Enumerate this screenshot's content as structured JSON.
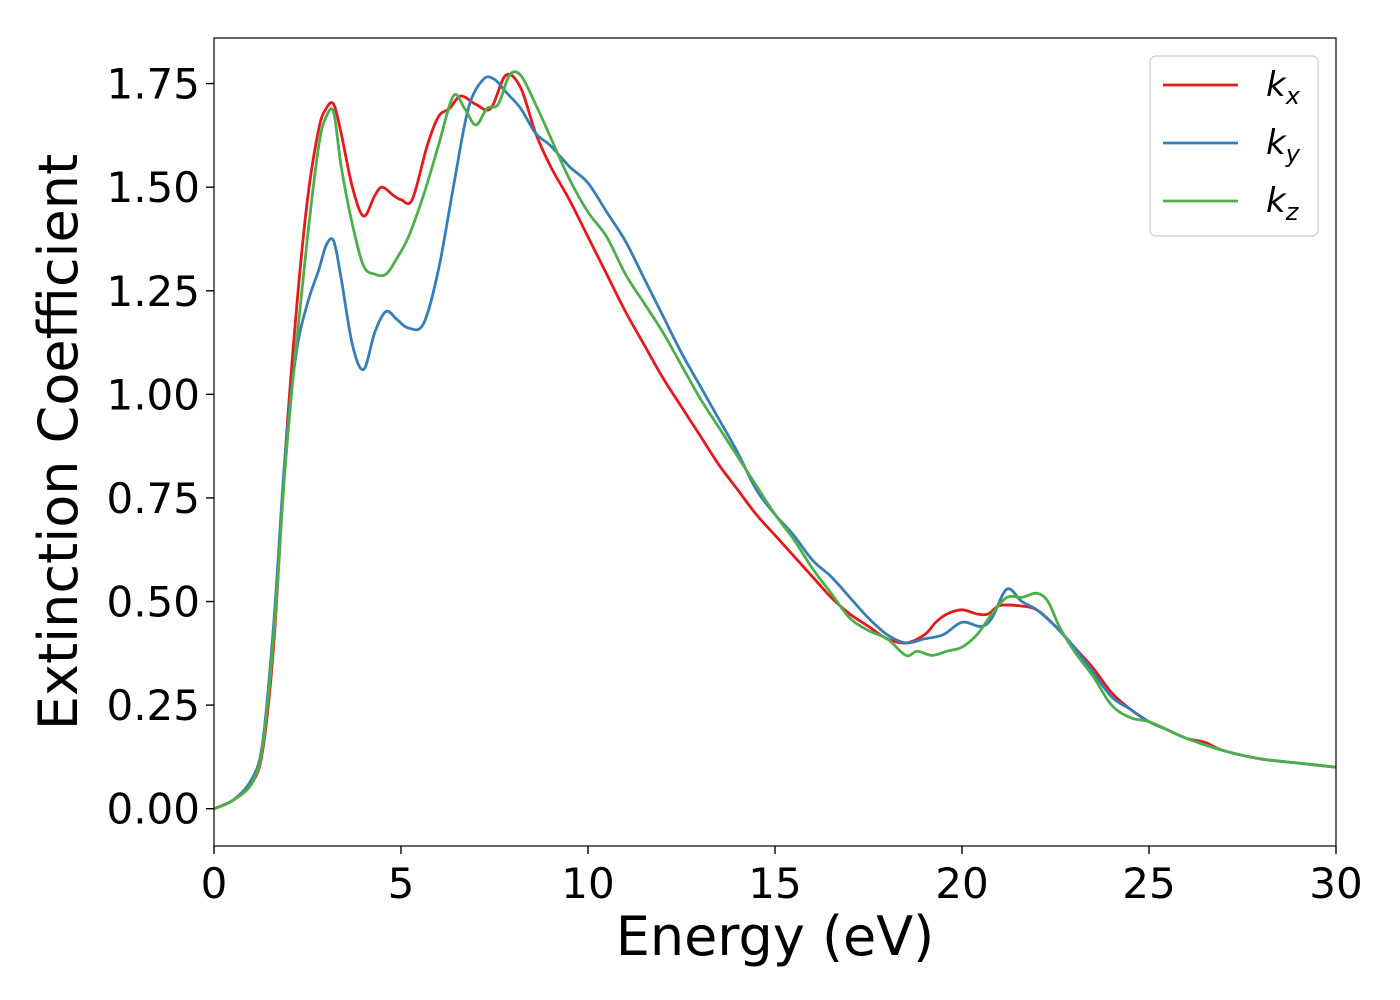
{
  "chart_data": {
    "type": "line",
    "xlabel": "Energy (eV)",
    "ylabel": "Extinction Coefficient",
    "xlim": [
      0,
      30
    ],
    "ylim": [
      -0.09,
      1.86
    ],
    "xticks": [
      "0",
      "5",
      "10",
      "15",
      "20",
      "25",
      "30"
    ],
    "yticks": [
      "0.00",
      "0.25",
      "0.50",
      "0.75",
      "1.00",
      "1.25",
      "1.50",
      "1.75"
    ],
    "grid": false,
    "legend_position": "top-right",
    "series": [
      {
        "name": "k",
        "subscript": "x",
        "color": "#e41a1c",
        "x": [
          0,
          0.5,
          1.0,
          1.3,
          1.6,
          1.9,
          2.2,
          2.5,
          2.8,
          3.0,
          3.2,
          3.4,
          3.7,
          4.0,
          4.3,
          4.5,
          4.8,
          5.0,
          5.3,
          5.7,
          6.0,
          6.3,
          6.6,
          7.0,
          7.4,
          7.8,
          8.2,
          8.6,
          9.0,
          9.5,
          10.0,
          10.5,
          11.0,
          11.5,
          12.0,
          12.5,
          13.0,
          13.5,
          14.0,
          14.5,
          15.0,
          15.5,
          16.0,
          16.5,
          17.0,
          17.5,
          18.0,
          18.5,
          19.0,
          19.3,
          19.6,
          20.0,
          20.4,
          20.7,
          21.0,
          21.5,
          22.0,
          22.5,
          23.0,
          23.5,
          24.0,
          24.5,
          25.0,
          25.5,
          26.0,
          26.5,
          27.0,
          28.0,
          29.0,
          30.0
        ],
        "y": [
          0.0,
          0.02,
          0.06,
          0.14,
          0.4,
          0.85,
          1.2,
          1.47,
          1.64,
          1.69,
          1.7,
          1.63,
          1.5,
          1.43,
          1.48,
          1.5,
          1.48,
          1.47,
          1.47,
          1.6,
          1.67,
          1.69,
          1.72,
          1.7,
          1.69,
          1.77,
          1.74,
          1.63,
          1.55,
          1.47,
          1.38,
          1.29,
          1.2,
          1.12,
          1.04,
          0.97,
          0.9,
          0.83,
          0.77,
          0.71,
          0.66,
          0.61,
          0.56,
          0.51,
          0.47,
          0.44,
          0.41,
          0.4,
          0.42,
          0.45,
          0.47,
          0.48,
          0.47,
          0.47,
          0.49,
          0.49,
          0.48,
          0.44,
          0.39,
          0.34,
          0.28,
          0.24,
          0.21,
          0.19,
          0.17,
          0.16,
          0.14,
          0.12,
          0.11,
          0.1
        ]
      },
      {
        "name": "k",
        "subscript": "y",
        "color": "#377eb8",
        "x": [
          0,
          0.5,
          1.0,
          1.3,
          1.6,
          1.9,
          2.2,
          2.5,
          2.8,
          3.0,
          3.2,
          3.4,
          3.7,
          4.0,
          4.3,
          4.6,
          4.9,
          5.2,
          5.6,
          6.0,
          6.4,
          6.8,
          7.2,
          7.5,
          7.8,
          8.2,
          8.6,
          9.0,
          9.5,
          10.0,
          10.5,
          11.0,
          11.5,
          12.0,
          12.5,
          13.0,
          13.5,
          14.0,
          14.5,
          15.0,
          15.5,
          16.0,
          16.5,
          17.0,
          17.5,
          18.0,
          18.5,
          19.0,
          19.5,
          20.0,
          20.5,
          20.8,
          21.2,
          21.6,
          22.0,
          22.5,
          23.0,
          23.5,
          24.0,
          24.5,
          25.0,
          25.5,
          26.0,
          27.0,
          28.0,
          29.0,
          30.0
        ],
        "y": [
          0.0,
          0.02,
          0.07,
          0.16,
          0.45,
          0.85,
          1.1,
          1.22,
          1.3,
          1.36,
          1.37,
          1.28,
          1.12,
          1.06,
          1.15,
          1.2,
          1.18,
          1.16,
          1.17,
          1.3,
          1.5,
          1.69,
          1.76,
          1.76,
          1.73,
          1.69,
          1.63,
          1.6,
          1.55,
          1.51,
          1.44,
          1.37,
          1.28,
          1.19,
          1.1,
          1.02,
          0.94,
          0.86,
          0.77,
          0.71,
          0.66,
          0.6,
          0.56,
          0.51,
          0.46,
          0.42,
          0.4,
          0.41,
          0.42,
          0.45,
          0.44,
          0.46,
          0.53,
          0.5,
          0.48,
          0.44,
          0.39,
          0.33,
          0.27,
          0.24,
          0.21,
          0.19,
          0.17,
          0.14,
          0.12,
          0.11,
          0.1
        ]
      },
      {
        "name": "k",
        "subscript": "z",
        "color": "#4daf4a",
        "x": [
          0,
          0.5,
          1.0,
          1.3,
          1.6,
          1.9,
          2.2,
          2.5,
          2.8,
          3.0,
          3.2,
          3.4,
          3.7,
          4.0,
          4.3,
          4.6,
          4.9,
          5.2,
          5.6,
          6.0,
          6.4,
          6.7,
          7.0,
          7.3,
          7.6,
          7.9,
          8.2,
          8.6,
          9.0,
          9.5,
          10.0,
          10.5,
          11.0,
          11.5,
          12.0,
          12.5,
          13.0,
          13.5,
          14.0,
          14.5,
          15.0,
          15.5,
          16.0,
          16.5,
          17.0,
          17.5,
          18.0,
          18.5,
          18.8,
          19.2,
          19.6,
          20.0,
          20.4,
          20.8,
          21.2,
          21.6,
          22.0,
          22.3,
          22.6,
          23.0,
          23.5,
          24.0,
          24.5,
          25.0,
          25.5,
          26.0,
          27.0,
          28.0,
          29.0,
          30.0
        ],
        "y": [
          0.0,
          0.02,
          0.06,
          0.15,
          0.42,
          0.82,
          1.12,
          1.38,
          1.6,
          1.67,
          1.68,
          1.55,
          1.41,
          1.31,
          1.29,
          1.29,
          1.33,
          1.38,
          1.48,
          1.6,
          1.72,
          1.69,
          1.65,
          1.69,
          1.7,
          1.77,
          1.77,
          1.7,
          1.62,
          1.52,
          1.44,
          1.38,
          1.29,
          1.22,
          1.15,
          1.07,
          0.99,
          0.92,
          0.85,
          0.78,
          0.71,
          0.65,
          0.58,
          0.52,
          0.46,
          0.43,
          0.41,
          0.37,
          0.38,
          0.37,
          0.38,
          0.39,
          0.42,
          0.47,
          0.51,
          0.51,
          0.52,
          0.5,
          0.44,
          0.38,
          0.32,
          0.25,
          0.22,
          0.21,
          0.19,
          0.17,
          0.14,
          0.12,
          0.11,
          0.1
        ]
      }
    ]
  }
}
